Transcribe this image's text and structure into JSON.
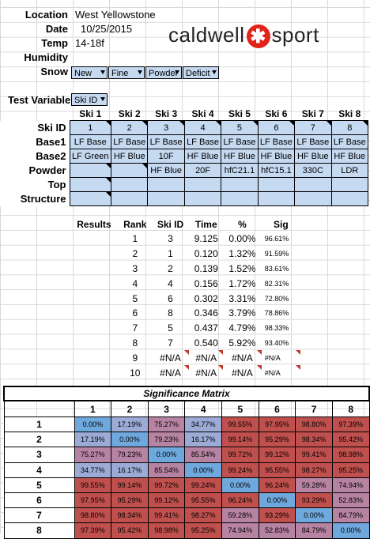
{
  "info": {
    "location_label": "Location",
    "location": "West Yellowstone",
    "date_label": "Date",
    "date": "10/25/2015",
    "temp_label": "Temp",
    "temp": "14-18f",
    "humidity_label": "Humidity",
    "humidity": "",
    "snow_label": "Snow",
    "snow": [
      "New",
      "Fine",
      "Powder",
      "Deficit"
    ]
  },
  "logo": {
    "left": "caldwell",
    "right": "sport",
    "mark": "✱"
  },
  "test_variable": {
    "label": "Test Variable",
    "value": "Ski ID"
  },
  "ski_table": {
    "columns": [
      "Ski 1",
      "Ski 2",
      "Ski 3",
      "Ski 4",
      "Ski 5",
      "Ski 6",
      "Ski 7",
      "Ski 8"
    ],
    "rows": [
      {
        "label": "Ski ID",
        "cells": [
          "1",
          "2",
          "3",
          "4",
          "5",
          "6",
          "7",
          "8"
        ]
      },
      {
        "label": "Base1",
        "cells": [
          "LF Base",
          "LF Base",
          "LF Base",
          "LF Base",
          "LF Base",
          "LF Base",
          "LF Base",
          "LF Base"
        ]
      },
      {
        "label": "Base2",
        "cells": [
          "LF Green",
          "HF Blue",
          "10F",
          "HF Blue",
          "HF Blue",
          "HF Blue",
          "HF Blue",
          "HF Blue"
        ]
      },
      {
        "label": "Powder",
        "cells": [
          "",
          "",
          "HF Blue",
          "20F",
          "hfC21.1",
          "hfC15.1",
          "330C",
          "LDR"
        ]
      },
      {
        "label": "Top",
        "cells": [
          "",
          "",
          "",
          "",
          "",
          "",
          "",
          ""
        ]
      },
      {
        "label": "Structure",
        "cells": [
          "",
          "",
          "",
          "",
          "",
          "",
          "",
          ""
        ]
      }
    ]
  },
  "results": {
    "headers": [
      "Results",
      "Rank",
      "Ski ID",
      "Time",
      "%",
      "Sig"
    ],
    "rows": [
      [
        "1",
        "3",
        "9.125",
        "0.00%",
        "96.61%"
      ],
      [
        "2",
        "1",
        "0.120",
        "1.32%",
        "91.59%"
      ],
      [
        "3",
        "2",
        "0.139",
        "1.52%",
        "83.61%"
      ],
      [
        "4",
        "4",
        "0.156",
        "1.72%",
        "82.31%"
      ],
      [
        "5",
        "6",
        "0.302",
        "3.31%",
        "72.80%"
      ],
      [
        "6",
        "8",
        "0.346",
        "3.79%",
        "78.86%"
      ],
      [
        "7",
        "5",
        "0.437",
        "4.79%",
        "98.33%"
      ],
      [
        "8",
        "7",
        "0.540",
        "5.92%",
        "93.40%"
      ],
      [
        "9",
        "#N/A",
        "#N/A",
        "#N/A",
        "#N/A"
      ],
      [
        "10",
        "#N/A",
        "#N/A",
        "#N/A",
        "#N/A"
      ]
    ]
  },
  "matrix": {
    "title": "Significance Matrix",
    "columns": [
      "1",
      "2",
      "3",
      "4",
      "5",
      "6",
      "7",
      "8"
    ],
    "rows": [
      {
        "label": "1",
        "cells": [
          "0.00%",
          "17.19%",
          "75.27%",
          "34.77%",
          "99.55%",
          "97.95%",
          "98.80%",
          "97.39%"
        ]
      },
      {
        "label": "2",
        "cells": [
          "17.19%",
          "0.00%",
          "79.23%",
          "16.17%",
          "99.14%",
          "95.29%",
          "98.34%",
          "95.42%"
        ]
      },
      {
        "label": "3",
        "cells": [
          "75.27%",
          "79.23%",
          "0.00%",
          "85.54%",
          "99.72%",
          "99.12%",
          "99.41%",
          "98.98%"
        ]
      },
      {
        "label": "4",
        "cells": [
          "34.77%",
          "16.17%",
          "85.54%",
          "0.00%",
          "99.24%",
          "95.55%",
          "98.27%",
          "95.25%"
        ]
      },
      {
        "label": "5",
        "cells": [
          "99.55%",
          "99.14%",
          "99.72%",
          "99.24%",
          "0.00%",
          "96.24%",
          "59.28%",
          "74.94%"
        ]
      },
      {
        "label": "6",
        "cells": [
          "97.95%",
          "95.29%",
          "99.12%",
          "95.55%",
          "96.24%",
          "0.00%",
          "93.29%",
          "52.83%"
        ]
      },
      {
        "label": "7",
        "cells": [
          "98.80%",
          "98.34%",
          "99.41%",
          "98.27%",
          "59.28%",
          "93.29%",
          "0.00%",
          "84.79%"
        ]
      },
      {
        "label": "8",
        "cells": [
          "97.39%",
          "95.42%",
          "98.98%",
          "95.25%",
          "74.94%",
          "52.83%",
          "84.79%",
          "0.00%"
        ]
      }
    ],
    "colors": {
      "high": "#c0504d",
      "mid": "#b783a3",
      "low": "#9cabd6",
      "zero": "#6fa8dc"
    }
  }
}
